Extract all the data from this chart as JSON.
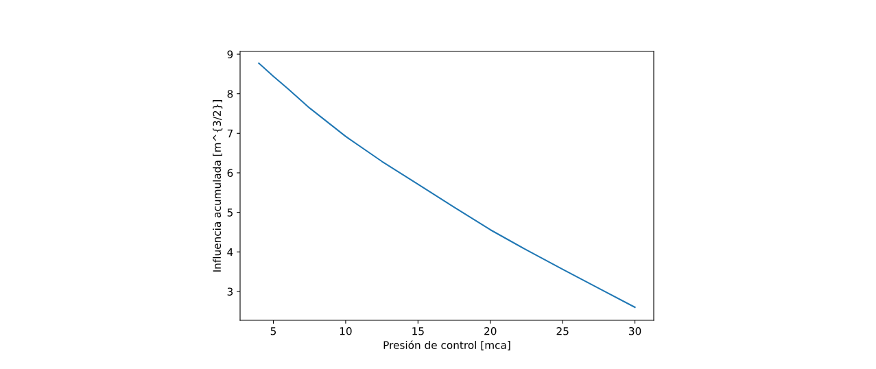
{
  "chart_data": {
    "type": "line",
    "xlabel": "Presión de control [mca]",
    "ylabel": "Influencia acumulada [m^{3/2}]",
    "x": [
      4,
      5,
      6,
      7.5,
      10,
      12.5,
      15,
      17.5,
      20,
      22.5,
      25,
      27.5,
      30
    ],
    "series": [
      {
        "color": "#1f77b4",
        "values": [
          8.77,
          8.44,
          8.13,
          7.64,
          6.92,
          6.29,
          5.71,
          5.13,
          4.56,
          4.05,
          3.56,
          3.08,
          2.6
        ]
      }
    ],
    "xlim": [
      2.7,
      31.3
    ],
    "ylim": [
      2.27,
      9.07
    ],
    "xticks": [
      5,
      10,
      15,
      20,
      25,
      30
    ],
    "yticks": [
      3,
      4,
      5,
      6,
      7,
      8,
      9
    ],
    "grid": false,
    "legend": false,
    "marker": "none",
    "line_style": "solid"
  }
}
